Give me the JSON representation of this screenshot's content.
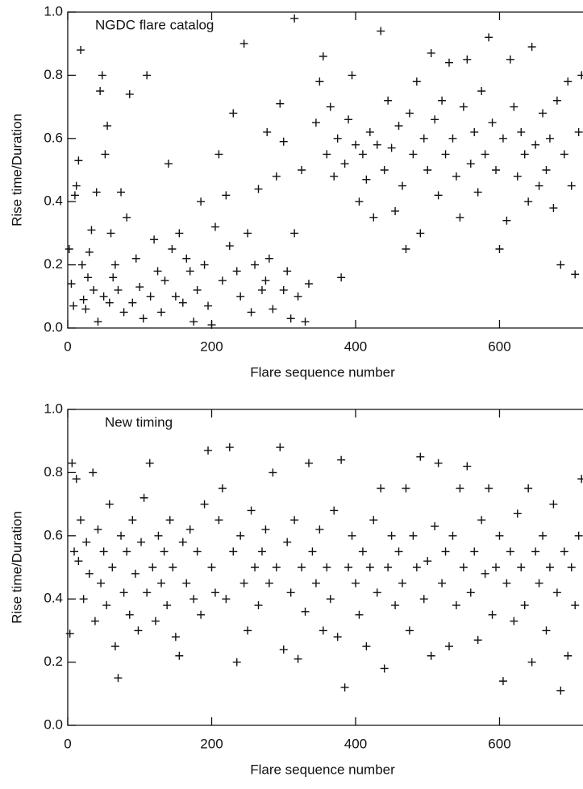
{
  "chart_data": [
    {
      "type": "scatter",
      "annotation": "NGDC flare catalog",
      "xlabel": "Flare sequence number",
      "ylabel": "Rise time/Duration",
      "color": "#111111",
      "xlim": [
        0,
        716
      ],
      "ylim": [
        0,
        1
      ],
      "xticks": [
        0,
        200,
        400,
        600
      ],
      "yticks": [
        {
          "value": 0,
          "label": "0.0"
        },
        {
          "value": 0.2,
          "label": "0.2"
        },
        {
          "value": 0.4,
          "label": "0.4"
        },
        {
          "value": 0.6,
          "label": "0.6"
        },
        {
          "value": 0.8,
          "label": "0.8"
        },
        {
          "value": 1,
          "label": "1.0"
        }
      ],
      "x": [
        2,
        5,
        8,
        10,
        12,
        15,
        18,
        20,
        22,
        25,
        28,
        30,
        33,
        36,
        40,
        42,
        45,
        48,
        50,
        52,
        55,
        58,
        60,
        63,
        66,
        70,
        74,
        78,
        82,
        86,
        90,
        95,
        100,
        105,
        110,
        115,
        120,
        125,
        130,
        135,
        140,
        145,
        150,
        155,
        160,
        165,
        170,
        175,
        180,
        185,
        190,
        195,
        200,
        205,
        210,
        215,
        220,
        225,
        230,
        235,
        240,
        245,
        250,
        255,
        260,
        265,
        270,
        275,
        277,
        280,
        285,
        290,
        295,
        300,
        300,
        305,
        310,
        315,
        315,
        320,
        325,
        330,
        335,
        345,
        350,
        355,
        360,
        365,
        370,
        375,
        380,
        385,
        390,
        395,
        400,
        405,
        410,
        415,
        420,
        425,
        430,
        435,
        440,
        445,
        450,
        455,
        460,
        465,
        470,
        475,
        480,
        485,
        490,
        495,
        500,
        505,
        510,
        515,
        520,
        525,
        530,
        535,
        540,
        545,
        550,
        555,
        560,
        565,
        570,
        575,
        580,
        585,
        590,
        595,
        600,
        605,
        610,
        615,
        620,
        625,
        630,
        635,
        640,
        645,
        650,
        655,
        660,
        665,
        670,
        675,
        680,
        685,
        690,
        695,
        700,
        705,
        710,
        714
      ],
      "values": [
        0.25,
        0.14,
        0.07,
        0.42,
        0.45,
        0.53,
        0.88,
        0.2,
        0.09,
        0.06,
        0.16,
        0.24,
        0.31,
        0.12,
        0.43,
        0.02,
        0.75,
        0.8,
        0.1,
        0.55,
        0.64,
        0.08,
        0.3,
        0.16,
        0.2,
        0.12,
        0.43,
        0.05,
        0.35,
        0.74,
        0.08,
        0.22,
        0.13,
        0.03,
        0.8,
        0.1,
        0.28,
        0.18,
        0.05,
        0.15,
        0.52,
        0.25,
        0.1,
        0.3,
        0.08,
        0.22,
        0.18,
        0.02,
        0.12,
        0.4,
        0.2,
        0.07,
        0.01,
        0.32,
        0.55,
        0.15,
        0.42,
        0.26,
        0.68,
        0.18,
        0.1,
        0.9,
        0.3,
        0.05,
        0.2,
        0.44,
        0.12,
        0.15,
        0.62,
        0.22,
        0.06,
        0.48,
        0.71,
        0.12,
        0.59,
        0.18,
        0.03,
        0.3,
        0.98,
        0.1,
        0.5,
        0.02,
        0.14,
        0.65,
        0.78,
        0.86,
        0.55,
        0.7,
        0.48,
        0.6,
        0.16,
        0.52,
        0.66,
        0.8,
        0.58,
        0.4,
        0.55,
        0.47,
        0.62,
        0.35,
        0.58,
        0.94,
        0.5,
        0.72,
        0.57,
        0.37,
        0.64,
        0.45,
        0.25,
        0.68,
        0.55,
        0.78,
        0.3,
        0.6,
        0.5,
        0.87,
        0.66,
        0.42,
        0.72,
        0.55,
        0.84,
        0.6,
        0.48,
        0.35,
        0.7,
        0.85,
        0.52,
        0.62,
        0.43,
        0.75,
        0.55,
        0.92,
        0.65,
        0.5,
        0.25,
        0.6,
        0.34,
        0.85,
        0.7,
        0.48,
        0.62,
        0.55,
        0.4,
        0.89,
        0.58,
        0.45,
        0.68,
        0.5,
        0.6,
        0.38,
        0.72,
        0.2,
        0.55,
        0.78,
        0.45,
        0.17,
        0.62,
        0.8
      ]
    },
    {
      "type": "scatter",
      "annotation": "New timing",
      "xlabel": "Flare sequence number",
      "ylabel": "Rise time/Duration",
      "color": "#111111",
      "xlim": [
        0,
        716
      ],
      "ylim": [
        0,
        1
      ],
      "xticks": [
        0,
        200,
        400,
        600
      ],
      "yticks": [
        {
          "value": 0,
          "label": "0.0"
        },
        {
          "value": 0.2,
          "label": "0.2"
        },
        {
          "value": 0.4,
          "label": "0.4"
        },
        {
          "value": 0.6,
          "label": "0.6"
        },
        {
          "value": 0.8,
          "label": "0.8"
        },
        {
          "value": 1,
          "label": "1.0"
        }
      ],
      "x": [
        3,
        6,
        9,
        12,
        15,
        18,
        22,
        26,
        30,
        35,
        38,
        42,
        46,
        50,
        54,
        58,
        62,
        66,
        70,
        74,
        78,
        82,
        86,
        90,
        94,
        98,
        102,
        106,
        110,
        114,
        118,
        122,
        126,
        130,
        134,
        138,
        142,
        146,
        150,
        155,
        160,
        165,
        170,
        175,
        180,
        185,
        190,
        195,
        200,
        205,
        210,
        215,
        220,
        225,
        230,
        235,
        240,
        245,
        250,
        255,
        260,
        265,
        270,
        275,
        280,
        285,
        290,
        295,
        300,
        305,
        310,
        315,
        320,
        325,
        330,
        335,
        340,
        345,
        350,
        355,
        360,
        365,
        370,
        375,
        380,
        385,
        390,
        395,
        400,
        405,
        410,
        415,
        420,
        425,
        430,
        435,
        440,
        445,
        450,
        455,
        460,
        465,
        470,
        475,
        480,
        485,
        490,
        495,
        500,
        505,
        510,
        515,
        520,
        525,
        530,
        535,
        540,
        545,
        550,
        555,
        560,
        565,
        570,
        575,
        580,
        585,
        590,
        595,
        600,
        605,
        610,
        615,
        620,
        625,
        630,
        635,
        640,
        645,
        650,
        655,
        660,
        665,
        670,
        675,
        680,
        685,
        690,
        695,
        700,
        705,
        710,
        714
      ],
      "values": [
        0.29,
        0.83,
        0.55,
        0.78,
        0.52,
        0.65,
        0.4,
        0.58,
        0.48,
        0.8,
        0.33,
        0.62,
        0.45,
        0.55,
        0.38,
        0.7,
        0.5,
        0.25,
        0.15,
        0.6,
        0.42,
        0.55,
        0.35,
        0.65,
        0.48,
        0.3,
        0.58,
        0.72,
        0.42,
        0.83,
        0.5,
        0.33,
        0.6,
        0.45,
        0.55,
        0.38,
        0.65,
        0.5,
        0.28,
        0.22,
        0.58,
        0.45,
        0.62,
        0.4,
        0.55,
        0.35,
        0.7,
        0.87,
        0.5,
        0.42,
        0.65,
        0.75,
        0.4,
        0.88,
        0.55,
        0.2,
        0.6,
        0.45,
        0.3,
        0.68,
        0.5,
        0.38,
        0.55,
        0.62,
        0.45,
        0.8,
        0.5,
        0.88,
        0.24,
        0.58,
        0.42,
        0.65,
        0.21,
        0.5,
        0.36,
        0.83,
        0.55,
        0.45,
        0.62,
        0.3,
        0.5,
        0.4,
        0.68,
        0.28,
        0.84,
        0.12,
        0.5,
        0.6,
        0.45,
        0.35,
        0.55,
        0.25,
        0.5,
        0.65,
        0.42,
        0.75,
        0.18,
        0.5,
        0.6,
        0.38,
        0.55,
        0.45,
        0.75,
        0.3,
        0.6,
        0.5,
        0.85,
        0.4,
        0.52,
        0.22,
        0.63,
        0.83,
        0.45,
        0.55,
        0.25,
        0.6,
        0.38,
        0.75,
        0.5,
        0.82,
        0.42,
        0.55,
        0.27,
        0.65,
        0.48,
        0.75,
        0.35,
        0.5,
        0.6,
        0.14,
        0.45,
        0.55,
        0.33,
        0.67,
        0.5,
        0.38,
        0.75,
        0.2,
        0.55,
        0.45,
        0.6,
        0.3,
        0.5,
        0.7,
        0.42,
        0.11,
        0.55,
        0.22,
        0.5,
        0.38,
        0.6,
        0.78
      ]
    }
  ]
}
